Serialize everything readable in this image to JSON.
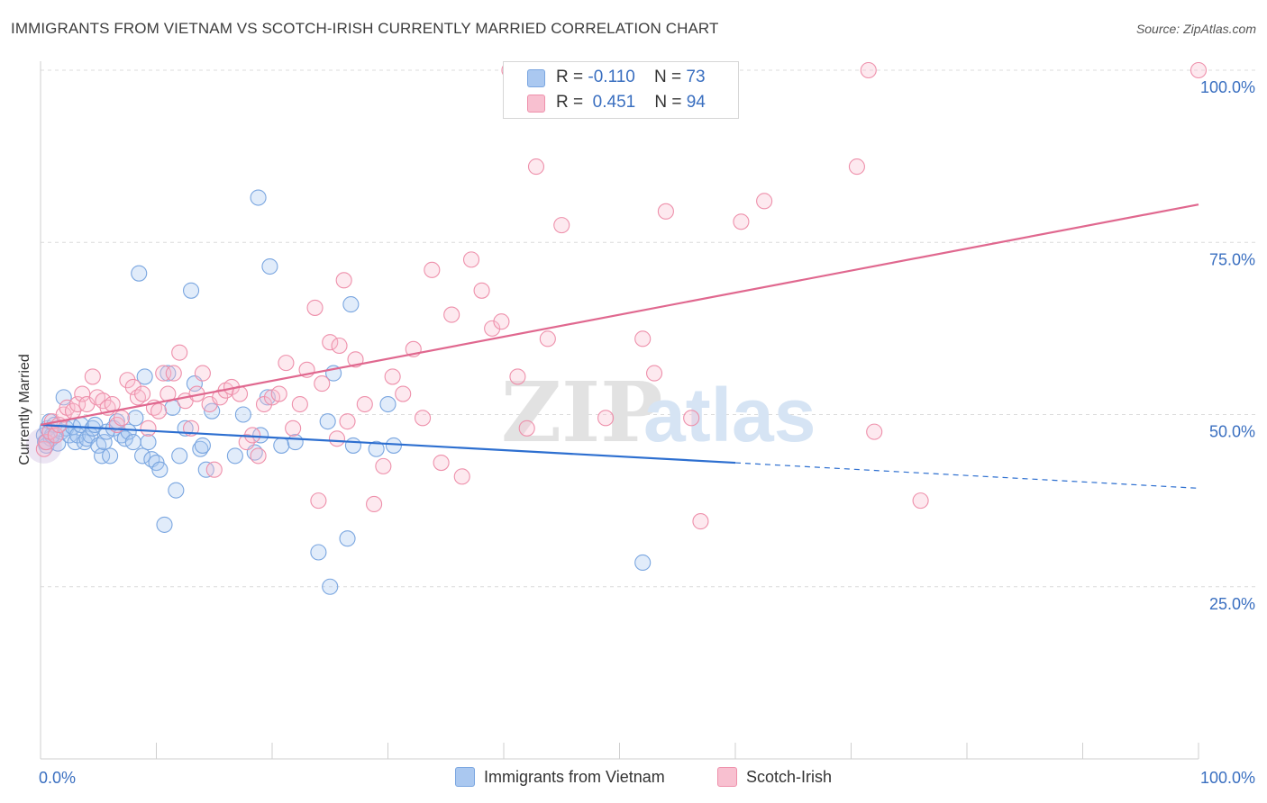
{
  "header": {
    "title": "IMMIGRANTS FROM VIETNAM VS SCOTCH-IRISH CURRENTLY MARRIED CORRELATION CHART",
    "source": "Source: ZipAtlas.com"
  },
  "watermark": {
    "part1": "ZIP",
    "part2": "atlas"
  },
  "legend": {
    "entries": [
      {
        "r_label": "R =",
        "r_value": "-0.110",
        "n_label": "N =",
        "n_value": "73",
        "color": "#aac8f0",
        "border": "#7aa6e0"
      },
      {
        "r_label": "R =",
        "r_value": "0.451",
        "n_label": "N =",
        "n_value": "94",
        "color": "#f8c0d0",
        "border": "#ee90ab"
      }
    ]
  },
  "chart_data": {
    "type": "scatter",
    "ylabel": "Currently Married",
    "x_tick_labels": [
      "0.0%",
      "100.0%"
    ],
    "y_tick_labels": [
      "25.0%",
      "50.0%",
      "75.0%",
      "100.0%"
    ],
    "xlim": [
      0,
      100
    ],
    "ylim": [
      0,
      100
    ],
    "grid": true,
    "series": [
      {
        "name": "Immigrants from Vietnam",
        "color": "#7aa6e0",
        "line_color": "#2d6fd0",
        "trend": {
          "solid": [
            [
              0,
              48.5
            ],
            [
              60,
              43.0
            ]
          ],
          "dashed": [
            [
              60,
              43.0
            ],
            [
              100,
              39.3
            ]
          ]
        },
        "points": [
          [
            0.3,
            47
          ],
          [
            0.4,
            46
          ],
          [
            0.5,
            45.5
          ],
          [
            0.6,
            48
          ],
          [
            0.8,
            49
          ],
          [
            0.9,
            46.5
          ],
          [
            1.0,
            47
          ],
          [
            1.2,
            48.5
          ],
          [
            1.5,
            45.8
          ],
          [
            1.8,
            47.5
          ],
          [
            2.0,
            52.5
          ],
          [
            2.2,
            48
          ],
          [
            2.5,
            47
          ],
          [
            2.8,
            48.2
          ],
          [
            3.0,
            46
          ],
          [
            3.2,
            47
          ],
          [
            3.5,
            48.5
          ],
          [
            3.8,
            46
          ],
          [
            4.0,
            46.5
          ],
          [
            4.3,
            47
          ],
          [
            4.5,
            48
          ],
          [
            4.7,
            48.5
          ],
          [
            5.0,
            45.5
          ],
          [
            5.3,
            44
          ],
          [
            5.5,
            46
          ],
          [
            5.7,
            47.5
          ],
          [
            6.0,
            44
          ],
          [
            6.3,
            48
          ],
          [
            6.6,
            49
          ],
          [
            7.0,
            47
          ],
          [
            7.3,
            46.5
          ],
          [
            7.6,
            47.5
          ],
          [
            8.0,
            46
          ],
          [
            8.2,
            49.5
          ],
          [
            8.5,
            70.5
          ],
          [
            8.8,
            44
          ],
          [
            9.0,
            55.5
          ],
          [
            9.3,
            46
          ],
          [
            9.6,
            43.5
          ],
          [
            10.0,
            43
          ],
          [
            10.3,
            42
          ],
          [
            10.7,
            34
          ],
          [
            11.0,
            56
          ],
          [
            11.4,
            51
          ],
          [
            11.7,
            39
          ],
          [
            12.0,
            44
          ],
          [
            12.5,
            48
          ],
          [
            13.0,
            68
          ],
          [
            13.3,
            54.5
          ],
          [
            13.8,
            45
          ],
          [
            14.0,
            45.5
          ],
          [
            14.3,
            42
          ],
          [
            14.8,
            50.5
          ],
          [
            16.8,
            44
          ],
          [
            17.5,
            50
          ],
          [
            18.5,
            44.5
          ],
          [
            18.8,
            81.5
          ],
          [
            19.0,
            47
          ],
          [
            19.6,
            52.5
          ],
          [
            19.8,
            71.5
          ],
          [
            20.8,
            45.5
          ],
          [
            22.0,
            46
          ],
          [
            24.0,
            30
          ],
          [
            24.8,
            49
          ],
          [
            25.0,
            25
          ],
          [
            25.3,
            56
          ],
          [
            26.5,
            32
          ],
          [
            26.8,
            66
          ],
          [
            27.0,
            45.5
          ],
          [
            29.0,
            45
          ],
          [
            30.0,
            51.5
          ],
          [
            30.5,
            45.5
          ],
          [
            52.0,
            28.5
          ]
        ]
      },
      {
        "name": "Scotch-Irish",
        "color": "#ee90ab",
        "line_color": "#e0688f",
        "trend": {
          "solid": [
            [
              0,
              48.5
            ],
            [
              100,
              80.5
            ]
          ]
        },
        "points": [
          [
            0.3,
            45
          ],
          [
            0.5,
            46
          ],
          [
            0.8,
            47.5
          ],
          [
            1.0,
            49
          ],
          [
            1.3,
            47
          ],
          [
            1.6,
            48.5
          ],
          [
            2.0,
            50
          ],
          [
            2.3,
            51
          ],
          [
            2.8,
            50.5
          ],
          [
            3.2,
            51.5
          ],
          [
            3.6,
            53
          ],
          [
            4.0,
            51.5
          ],
          [
            4.5,
            55.5
          ],
          [
            4.9,
            52.5
          ],
          [
            5.4,
            52
          ],
          [
            5.8,
            51
          ],
          [
            6.2,
            51.5
          ],
          [
            6.6,
            48.5
          ],
          [
            7.0,
            49.5
          ],
          [
            7.5,
            55
          ],
          [
            8.0,
            54
          ],
          [
            8.4,
            52.5
          ],
          [
            8.8,
            53
          ],
          [
            9.3,
            48
          ],
          [
            9.8,
            51
          ],
          [
            10.2,
            50.5
          ],
          [
            10.6,
            56
          ],
          [
            11.0,
            53
          ],
          [
            11.5,
            56
          ],
          [
            12.0,
            59
          ],
          [
            12.5,
            52
          ],
          [
            13.0,
            48
          ],
          [
            13.5,
            53
          ],
          [
            14.0,
            56
          ],
          [
            14.6,
            51.5
          ],
          [
            15.0,
            42
          ],
          [
            15.5,
            52.5
          ],
          [
            16.0,
            53.5
          ],
          [
            16.5,
            54
          ],
          [
            17.2,
            53
          ],
          [
            17.8,
            46
          ],
          [
            18.3,
            47
          ],
          [
            18.8,
            44
          ],
          [
            19.3,
            51.5
          ],
          [
            20.0,
            52.5
          ],
          [
            20.6,
            53
          ],
          [
            21.2,
            57.5
          ],
          [
            21.8,
            48
          ],
          [
            22.4,
            51.5
          ],
          [
            23.0,
            56.5
          ],
          [
            23.7,
            65.5
          ],
          [
            24.3,
            54.5
          ],
          [
            25.0,
            60.5
          ],
          [
            25.8,
            60
          ],
          [
            26.2,
            69.5
          ],
          [
            26.5,
            49
          ],
          [
            27.2,
            58
          ],
          [
            28.0,
            51.5
          ],
          [
            28.8,
            37
          ],
          [
            29.6,
            42.5
          ],
          [
            30.4,
            55.5
          ],
          [
            31.3,
            53
          ],
          [
            32.2,
            59.5
          ],
          [
            33.0,
            49.5
          ],
          [
            33.8,
            71
          ],
          [
            34.6,
            43
          ],
          [
            35.5,
            64.5
          ],
          [
            36.4,
            41
          ],
          [
            37.2,
            72.5
          ],
          [
            38.1,
            68
          ],
          [
            39.0,
            62.5
          ],
          [
            39.8,
            63.5
          ],
          [
            40.5,
            100
          ],
          [
            41.2,
            55.5
          ],
          [
            42.0,
            48
          ],
          [
            42.8,
            86
          ],
          [
            43.8,
            61
          ],
          [
            45.0,
            77.5
          ],
          [
            48.8,
            49.5
          ],
          [
            50.5,
            100
          ],
          [
            52.0,
            61
          ],
          [
            53.0,
            56
          ],
          [
            54.0,
            79.5
          ],
          [
            56.2,
            49.5
          ],
          [
            57.0,
            34.5
          ],
          [
            60.5,
            78
          ],
          [
            62.5,
            81
          ],
          [
            70.5,
            86
          ],
          [
            71.5,
            100
          ],
          [
            72.0,
            47.5
          ],
          [
            76.0,
            37.5
          ],
          [
            100.0,
            100
          ],
          [
            25.6,
            46.5
          ],
          [
            24.0,
            37.5
          ]
        ]
      }
    ]
  },
  "bottom_legend": [
    "Immigrants from Vietnam",
    "Scotch-Irish"
  ]
}
